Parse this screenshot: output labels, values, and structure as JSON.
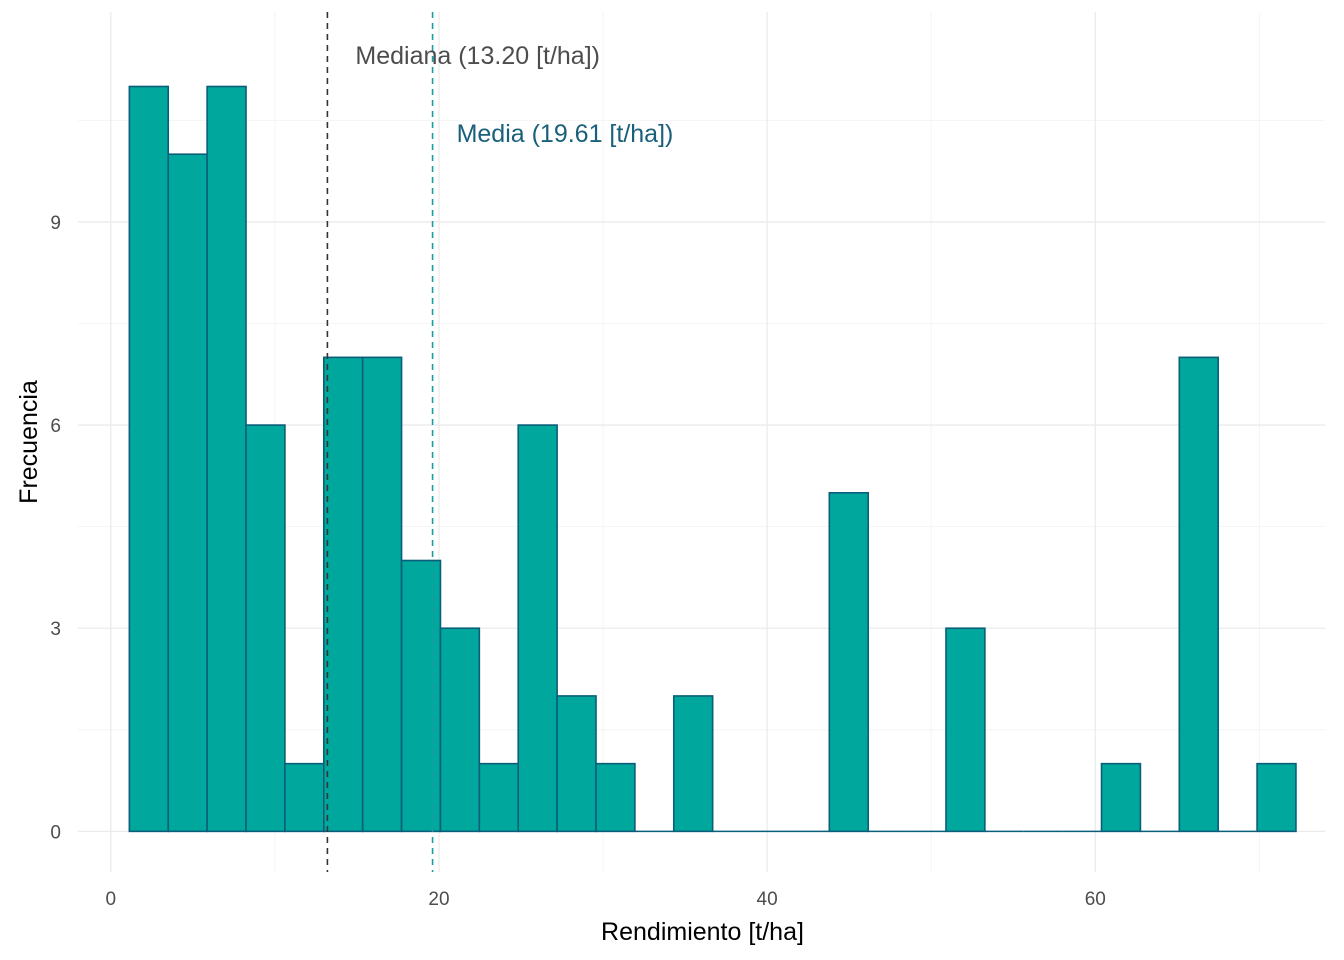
{
  "chart_data": {
    "type": "bar",
    "subtype": "histogram",
    "xlabel": "Rendimiento [t/ha]",
    "ylabel": "Frecuencia",
    "xlim": [
      -2,
      74
    ],
    "ylim": [
      -0.6,
      12.1
    ],
    "x_ticks": [
      0,
      20,
      40,
      60
    ],
    "y_ticks": [
      0,
      3,
      6,
      9
    ],
    "bin_width": 2.37,
    "bins_start": [
      1.13,
      3.5,
      5.87,
      8.24,
      10.61,
      12.98,
      15.35,
      17.72,
      20.09,
      22.46,
      24.83,
      27.2,
      29.57,
      31.94,
      34.31,
      36.68,
      39.05,
      41.42,
      43.79,
      46.16,
      48.53,
      50.9,
      53.27,
      55.64,
      58.01,
      60.38,
      62.75,
      65.12,
      67.49,
      69.86
    ],
    "values": [
      11,
      10,
      11,
      6,
      1,
      7,
      7,
      4,
      3,
      1,
      6,
      2,
      1,
      0,
      2,
      0,
      0,
      0,
      5,
      0,
      0,
      3,
      0,
      0,
      0,
      1,
      0,
      7,
      0,
      1
    ],
    "bar_fill": "#00a79d",
    "bar_outline": "#0b5e79",
    "grid": true,
    "annotations": [
      {
        "text": "Mediana (13.20 [t/ha])",
        "x": 13.2,
        "color": "#4d4d4d",
        "line_color": "#333333"
      },
      {
        "text": "Media (19.61 [t/ha])",
        "x": 19.61,
        "color": "#1a607d",
        "line_color": "#1a9da0"
      }
    ]
  }
}
